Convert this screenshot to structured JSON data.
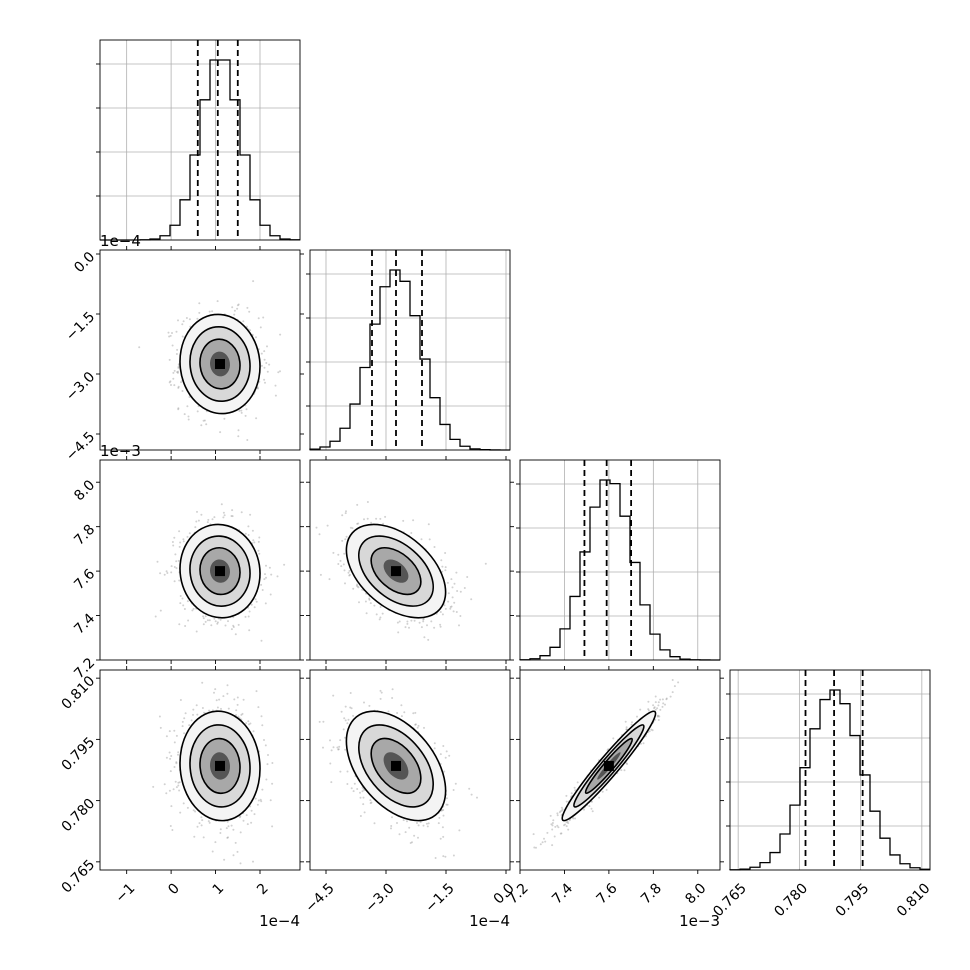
{
  "chart_data": {
    "type": "corner",
    "parameters": [
      {
        "range": [
          -1.6,
          2.9
        ],
        "ticks": [
          "−1",
          "0",
          "1",
          "2"
        ],
        "tick_values": [
          -1,
          0,
          1,
          2
        ],
        "offset": "1e−4",
        "quantiles": [
          0.6,
          1.05,
          1.5
        ],
        "peak": 1.1,
        "sigma": 0.45
      },
      {
        "range": [
          -4.9,
          0.1
        ],
        "ticks": [
          "−4.5",
          "−3.0",
          "−1.5",
          "0.0"
        ],
        "tick_values": [
          -4.5,
          -3.0,
          -1.5,
          0.0
        ],
        "offset": "1e−4",
        "quantiles": [
          -3.35,
          -2.75,
          -2.1
        ],
        "peak": -2.75,
        "sigma": 0.62
      },
      {
        "range": [
          7.2,
          8.1
        ],
        "ticks": [
          "7.2",
          "7.4",
          "7.6",
          "7.8",
          "8.0"
        ],
        "tick_values": [
          7.2,
          7.4,
          7.6,
          7.8,
          8.0
        ],
        "offset": "1e−3",
        "quantiles": [
          7.49,
          7.59,
          7.7
        ],
        "peak": 7.6,
        "sigma": 0.105
      },
      {
        "range": [
          0.763,
          0.812
        ],
        "ticks": [
          "0.765",
          "0.780",
          "0.795",
          "0.810"
        ],
        "tick_values": [
          0.765,
          0.78,
          0.795,
          0.81
        ],
        "offset": "",
        "quantiles": [
          0.7815,
          0.7885,
          0.7955
        ],
        "peak": 0.7885,
        "sigma": 0.0067
      }
    ],
    "correlations": [
      {
        "i": 1,
        "j": 0,
        "rho": -0.05
      },
      {
        "i": 2,
        "j": 0,
        "rho": -0.05
      },
      {
        "i": 2,
        "j": 1,
        "rho": -0.45
      },
      {
        "i": 3,
        "j": 0,
        "rho": -0.05
      },
      {
        "i": 3,
        "j": 1,
        "rho": -0.45
      },
      {
        "i": 3,
        "j": 2,
        "rho": 0.96
      }
    ],
    "grid": true,
    "quantile_lines": "dashed"
  }
}
